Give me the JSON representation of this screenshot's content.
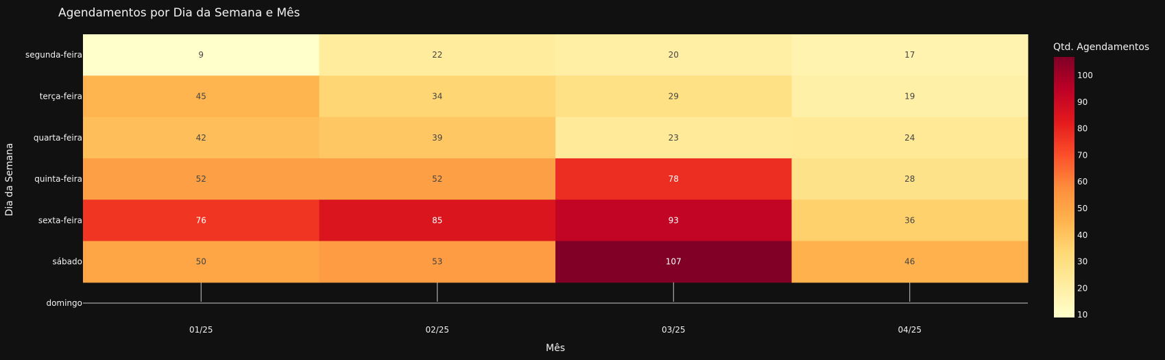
{
  "chart_data": {
    "type": "heatmap",
    "title": "Agendamentos por Dia da Semana e Mês",
    "xlabel": "Mês",
    "ylabel": "Dia da Semana",
    "x": [
      "01/25",
      "02/25",
      "03/25",
      "04/25"
    ],
    "y": [
      "segunda-feira",
      "terça-feira",
      "quarta-feira",
      "quinta-feira",
      "sexta-feira",
      "sábado",
      "domingo"
    ],
    "z": [
      [
        9,
        22,
        20,
        17
      ],
      [
        45,
        34,
        29,
        19
      ],
      [
        42,
        39,
        23,
        24
      ],
      [
        52,
        52,
        78,
        28
      ],
      [
        76,
        85,
        93,
        36
      ],
      [
        50,
        53,
        107,
        46
      ],
      [
        null,
        null,
        null,
        null
      ]
    ],
    "colorscale": "YlOrRd",
    "zmin": 9,
    "zmax": 107,
    "colorbar": {
      "title": "Qtd. Agendamentos",
      "ticks": [
        10,
        20,
        30,
        40,
        50,
        60,
        70,
        80,
        90,
        100
      ]
    },
    "grid": false,
    "colors": {
      "background": "#111111",
      "text": "#f2f2f2",
      "dark_label": "#444444",
      "light_label": "#ffffff",
      "axis_line": "#cccccc"
    }
  }
}
